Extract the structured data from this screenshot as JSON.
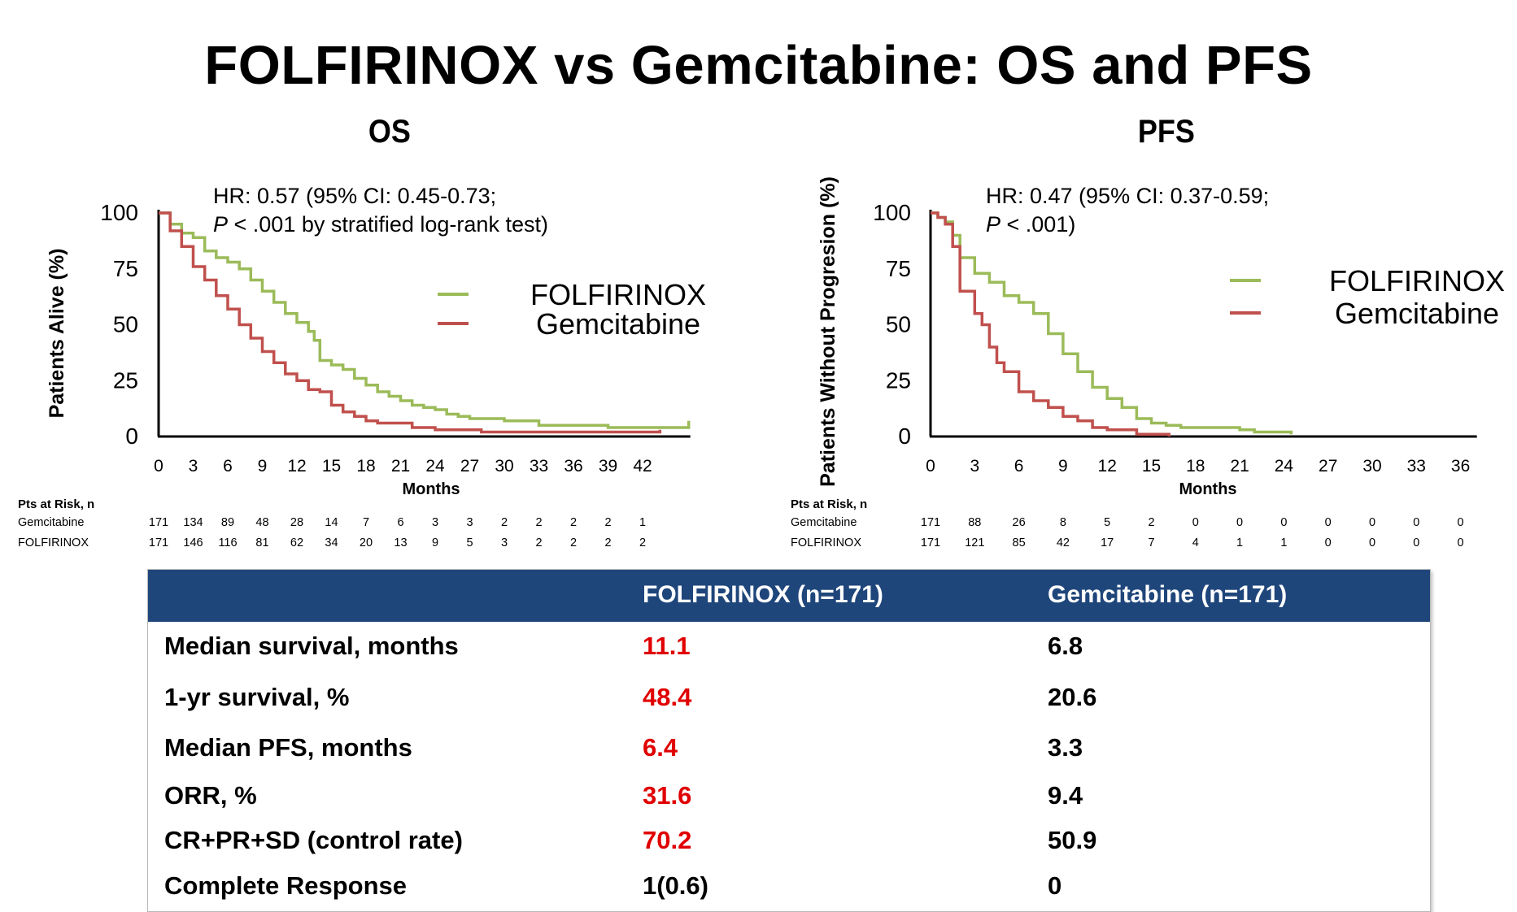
{
  "title": "FOLFIRINOX vs Gemcitabine: OS and PFS",
  "colors": {
    "folfirinox": "#9bbb59",
    "gemcitabine": "#c0504d",
    "header_bg": "#1f467b",
    "highlight": "#e00000"
  },
  "panels": [
    {
      "heading": "OS",
      "ylabel": "Patients Alive (%)",
      "xlabel": "Months",
      "hr_line1": "HR: 0.57 (95% CI: 0.45-0.73;",
      "hr_p": "P",
      "hr_line2": " < .001 by stratified log-rank test)",
      "yticks": [
        "100",
        "75",
        "50",
        "25",
        "0"
      ],
      "xticks": [
        "0",
        "3",
        "6",
        "9",
        "12",
        "15",
        "18",
        "21",
        "24",
        "27",
        "30",
        "33",
        "36",
        "39",
        "42"
      ],
      "legend": [
        "FOLFIRINOX",
        "Gemcitabine"
      ],
      "risk": {
        "header": "Pts at Risk, n",
        "rows": [
          {
            "label": "Gemcitabine",
            "values": [
              "171",
              "134",
              "89",
              "48",
              "28",
              "14",
              "7",
              "6",
              "3",
              "3",
              "2",
              "2",
              "2",
              "2",
              "1"
            ]
          },
          {
            "label": "FOLFIRINOX",
            "values": [
              "171",
              "146",
              "116",
              "81",
              "62",
              "34",
              "20",
              "13",
              "9",
              "5",
              "3",
              "2",
              "2",
              "2",
              "2"
            ]
          }
        ]
      }
    },
    {
      "heading": "PFS",
      "ylabel": "Patients Without Progresion (%)",
      "xlabel": "Months",
      "hr_line1": "HR: 0.47 (95% CI: 0.37-0.59;",
      "hr_p": "P",
      "hr_line2": " < .001)",
      "yticks": [
        "100",
        "75",
        "50",
        "25",
        "0"
      ],
      "xticks": [
        "0",
        "3",
        "6",
        "9",
        "12",
        "15",
        "18",
        "21",
        "24",
        "27",
        "30",
        "33",
        "36"
      ],
      "legend": [
        "FOLFIRINOX",
        "Gemcitabine"
      ],
      "risk": {
        "header": "Pts at Risk, n",
        "rows": [
          {
            "label": "Gemcitabine",
            "values": [
              "171",
              "88",
              "26",
              "8",
              "5",
              "2",
              "0",
              "0",
              "0",
              "0",
              "0",
              "0",
              "0"
            ]
          },
          {
            "label": "FOLFIRINOX",
            "values": [
              "171",
              "121",
              "85",
              "42",
              "17",
              "7",
              "4",
              "1",
              "1",
              "0",
              "0",
              "0",
              "0"
            ]
          }
        ]
      }
    }
  ],
  "chart_data": [
    {
      "type": "line",
      "title": "OS",
      "xlabel": "Months",
      "ylabel": "Patients Alive (%)",
      "xlim": [
        0,
        46
      ],
      "ylim": [
        0,
        100
      ],
      "series": [
        {
          "name": "FOLFIRINOX",
          "points": [
            [
              0,
              100
            ],
            [
              1,
              95
            ],
            [
              2,
              91
            ],
            [
              3,
              89
            ],
            [
              4,
              83
            ],
            [
              5,
              80
            ],
            [
              6,
              78
            ],
            [
              7,
              75
            ],
            [
              8,
              70
            ],
            [
              9,
              65
            ],
            [
              10,
              60
            ],
            [
              11,
              55
            ],
            [
              12,
              51
            ],
            [
              13,
              47
            ],
            [
              13.5,
              43
            ],
            [
              14,
              34
            ],
            [
              15,
              32
            ],
            [
              16,
              30
            ],
            [
              17,
              26
            ],
            [
              18,
              23
            ],
            [
              19,
              20
            ],
            [
              20,
              18
            ],
            [
              21,
              16
            ],
            [
              22,
              14
            ],
            [
              23,
              13
            ],
            [
              24,
              12
            ],
            [
              25,
              10
            ],
            [
              26,
              9
            ],
            [
              27,
              8
            ],
            [
              28,
              8
            ],
            [
              30,
              7
            ],
            [
              33,
              5
            ],
            [
              36,
              5
            ],
            [
              39,
              4
            ],
            [
              42,
              4
            ],
            [
              45,
              4
            ],
            [
              46,
              7
            ]
          ]
        },
        {
          "name": "Gemcitabine",
          "points": [
            [
              0,
              100
            ],
            [
              1,
              92
            ],
            [
              2,
              85
            ],
            [
              3,
              76
            ],
            [
              4,
              70
            ],
            [
              5,
              63
            ],
            [
              6,
              57
            ],
            [
              7,
              50
            ],
            [
              8,
              44
            ],
            [
              9,
              38
            ],
            [
              10,
              33
            ],
            [
              11,
              28
            ],
            [
              12,
              25
            ],
            [
              13,
              21
            ],
            [
              14,
              20
            ],
            [
              15,
              14
            ],
            [
              16,
              11
            ],
            [
              17,
              9
            ],
            [
              18,
              7
            ],
            [
              19,
              6
            ],
            [
              20,
              6
            ],
            [
              21,
              6
            ],
            [
              22,
              4
            ],
            [
              24,
              3
            ],
            [
              27,
              3
            ],
            [
              28,
              2
            ],
            [
              30,
              2
            ],
            [
              33,
              2
            ],
            [
              36,
              2
            ],
            [
              39,
              2
            ],
            [
              43,
              2
            ],
            [
              43.5,
              3
            ]
          ]
        }
      ]
    },
    {
      "type": "line",
      "title": "PFS",
      "xlabel": "Months",
      "ylabel": "Patients Without Progresion (%)",
      "xlim": [
        0,
        37
      ],
      "ylim": [
        0,
        100
      ],
      "series": [
        {
          "name": "FOLFIRINOX",
          "points": [
            [
              0,
              100
            ],
            [
              0.5,
              98
            ],
            [
              1,
              96
            ],
            [
              1.5,
              90
            ],
            [
              2,
              80
            ],
            [
              3,
              73
            ],
            [
              4,
              69
            ],
            [
              5,
              63
            ],
            [
              6,
              60
            ],
            [
              7,
              55
            ],
            [
              8,
              46
            ],
            [
              9,
              37
            ],
            [
              10,
              29
            ],
            [
              11,
              22
            ],
            [
              12,
              17
            ],
            [
              13,
              13
            ],
            [
              14,
              8
            ],
            [
              15,
              6
            ],
            [
              16,
              5
            ],
            [
              17,
              4
            ],
            [
              20,
              4
            ],
            [
              21,
              3
            ],
            [
              22,
              2
            ],
            [
              24,
              2
            ],
            [
              24.5,
              1
            ]
          ]
        },
        {
          "name": "Gemcitabine",
          "points": [
            [
              0,
              100
            ],
            [
              0.5,
              98
            ],
            [
              1,
              95
            ],
            [
              1.5,
              85
            ],
            [
              2,
              65
            ],
            [
              3,
              55
            ],
            [
              3.5,
              50
            ],
            [
              4,
              40
            ],
            [
              4.5,
              33
            ],
            [
              5,
              29
            ],
            [
              6,
              20
            ],
            [
              7,
              16
            ],
            [
              8,
              13
            ],
            [
              9,
              9
            ],
            [
              10,
              7
            ],
            [
              11,
              4
            ],
            [
              12,
              3
            ],
            [
              14,
              1
            ],
            [
              16,
              1
            ],
            [
              16.2,
              0
            ]
          ]
        }
      ]
    }
  ],
  "summary": {
    "header": [
      "",
      "FOLFIRINOX  (n=171)",
      "Gemcitabine  (n=171)"
    ],
    "rows": [
      {
        "label": "Median survival, months",
        "folfirinox": "11.1",
        "gemcitabine": "6.8",
        "highlight": true
      },
      {
        "label": "1-yr survival, %",
        "folfirinox": "48.4",
        "gemcitabine": "20.6",
        "highlight": true
      },
      {
        "label": "Median PFS, months",
        "folfirinox": "6.4",
        "gemcitabine": "3.3",
        "highlight": true
      },
      {
        "label": "ORR, %",
        "folfirinox": "31.6",
        "gemcitabine": "9.4",
        "highlight": true
      },
      {
        "label": "CR+PR+SD (control rate)",
        "folfirinox": "70.2",
        "gemcitabine": "50.9",
        "highlight": true
      },
      {
        "label": "Complete Response",
        "folfirinox": "1(0.6)",
        "gemcitabine": "0",
        "highlight": false
      }
    ]
  }
}
